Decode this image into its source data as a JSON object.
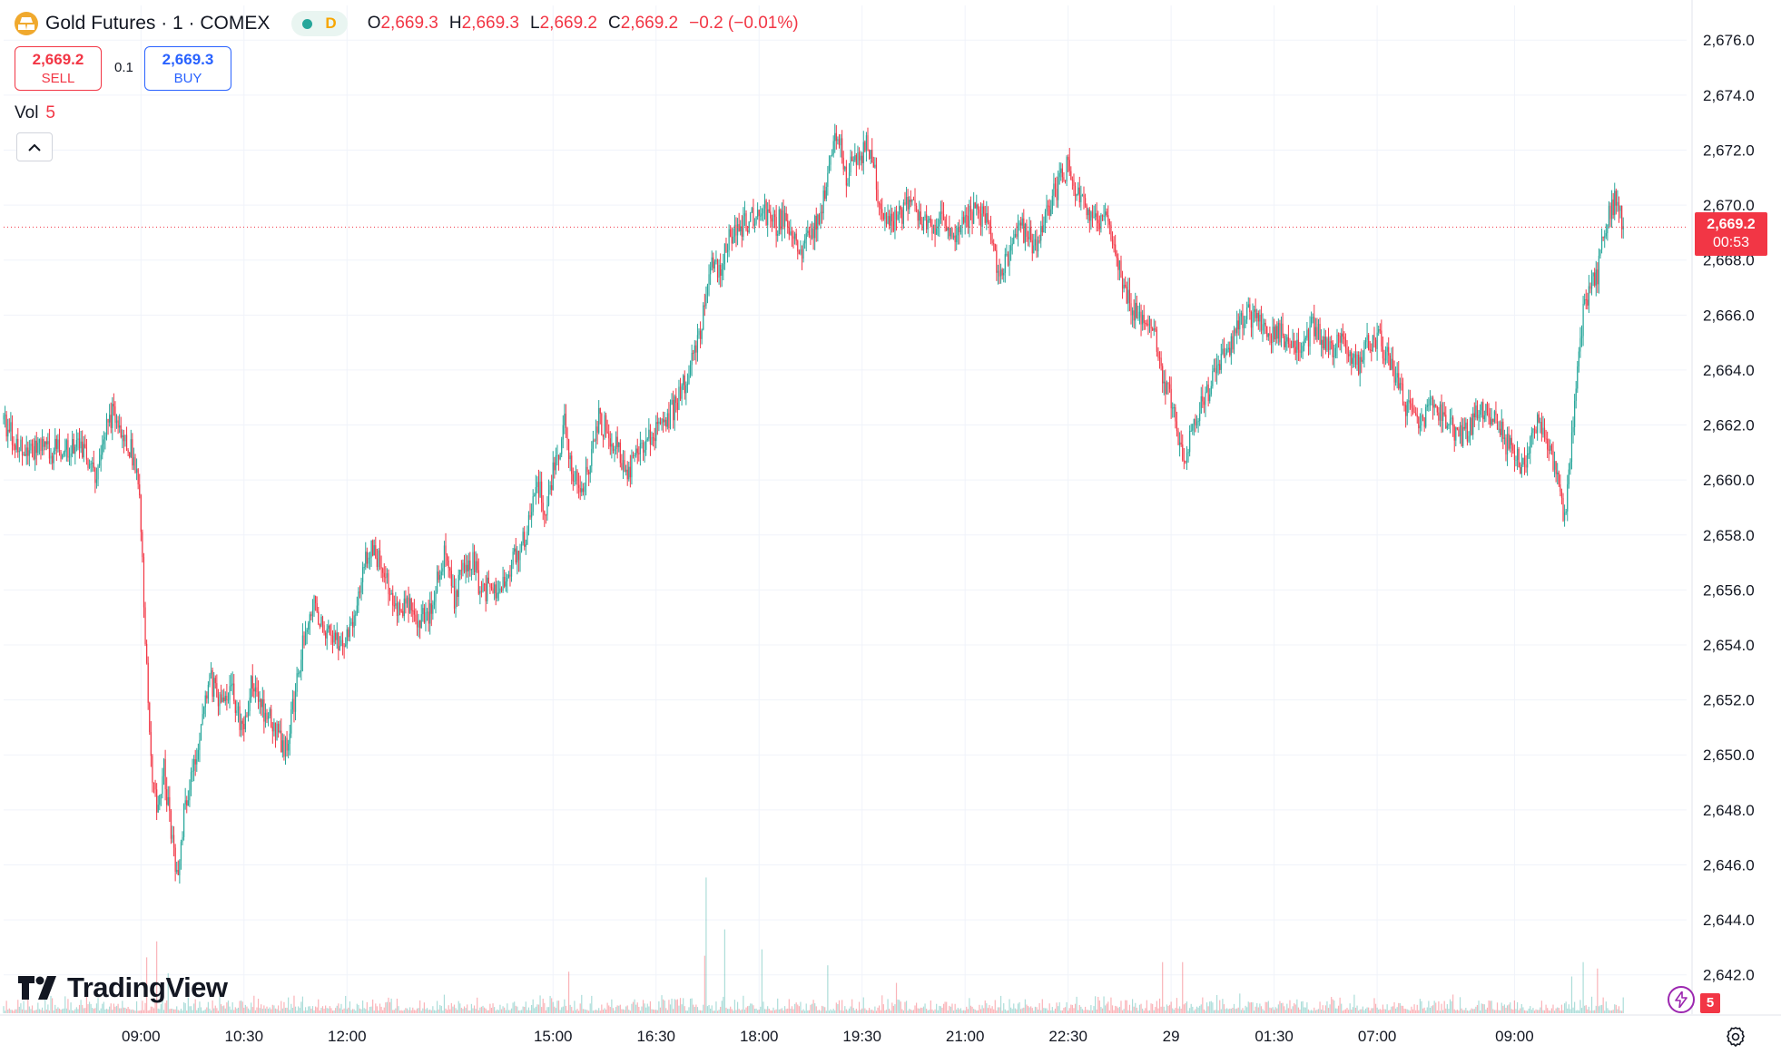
{
  "header": {
    "symbol": "Gold Futures · 1 · COMEX",
    "session": "D",
    "ohlc": {
      "o_label": "O",
      "o": "2,669.3",
      "h_label": "H",
      "h": "2,669.3",
      "l_label": "L",
      "l": "2,669.2",
      "c_label": "C",
      "c": "2,669.2",
      "change": "−0.2 (−0.01%)"
    }
  },
  "trade": {
    "sell_price": "2,669.2",
    "sell_label": "SELL",
    "spread": "0.1",
    "buy_price": "2,669.3",
    "buy_label": "BUY"
  },
  "volume_legend": {
    "label": "Vol",
    "value": "5"
  },
  "last_price": {
    "price": "2,669.2",
    "countdown": "00:53"
  },
  "branding": {
    "logo_text": "TradingView"
  },
  "alerts_badge": "5",
  "colors": {
    "up": "#26a69a",
    "down": "#f23645",
    "accent": "#2962ff",
    "grid": "#f0f3fa"
  },
  "chart_data": {
    "type": "candlestick",
    "title": "Gold Futures · 1 · COMEX",
    "y_axis": {
      "min": 2641.0,
      "max": 2676.8,
      "ticks": [
        2676,
        2674,
        2672,
        2670,
        2668,
        2666,
        2664,
        2662,
        2660,
        2658,
        2656,
        2654,
        2652,
        2650,
        2648,
        2646,
        2644,
        2642
      ],
      "tick_labels": [
        "2,676.0",
        "2,674.0",
        "2,672.0",
        "2,670.0",
        "2,668.0",
        "2,666.0",
        "2,664.0",
        "2,662.0",
        "2,660.0",
        "2,658.0",
        "2,656.0",
        "2,654.0",
        "2,652.0",
        "2,650.0",
        "2,648.0",
        "2,646.0",
        "2,644.0",
        "2,642.0"
      ]
    },
    "x_axis": {
      "domain": [
        0,
        1464
      ],
      "ticks": [
        {
          "t": 120,
          "label": "09:00"
        },
        {
          "t": 210,
          "label": "10:30"
        },
        {
          "t": 300,
          "label": "12:00"
        },
        {
          "t": 480,
          "label": "15:00"
        },
        {
          "t": 570,
          "label": "16:30"
        },
        {
          "t": 660,
          "label": "18:00"
        },
        {
          "t": 750,
          "label": "19:30"
        },
        {
          "t": 840,
          "label": "21:00"
        },
        {
          "t": 930,
          "label": "22:30"
        },
        {
          "t": 1020,
          "label": "29"
        },
        {
          "t": 1110,
          "label": "01:30"
        },
        {
          "t": 1200,
          "label": "07:00"
        },
        {
          "t": 1320,
          "label": "09:00"
        }
      ]
    },
    "grid": true,
    "last_price": 2669.2,
    "price_path": [
      [
        0,
        2662.2
      ],
      [
        10,
        2661.5
      ],
      [
        20,
        2660.8
      ],
      [
        30,
        2661.2
      ],
      [
        40,
        2661.0
      ],
      [
        55,
        2661.2
      ],
      [
        70,
        2661.0
      ],
      [
        82,
        2660.2
      ],
      [
        90,
        2662.0
      ],
      [
        97,
        2662.5
      ],
      [
        105,
        2661.6
      ],
      [
        112,
        2661.0
      ],
      [
        118,
        2660.0
      ],
      [
        122,
        2656.0
      ],
      [
        128,
        2650.0
      ],
      [
        134,
        2648.2
      ],
      [
        140,
        2649.5
      ],
      [
        146,
        2647.2
      ],
      [
        152,
        2645.5
      ],
      [
        158,
        2648.0
      ],
      [
        164,
        2649.0
      ],
      [
        172,
        2651.0
      ],
      [
        180,
        2652.8
      ],
      [
        190,
        2651.8
      ],
      [
        200,
        2652.2
      ],
      [
        210,
        2650.8
      ],
      [
        216,
        2652.5
      ],
      [
        222,
        2652.0
      ],
      [
        230,
        2651.5
      ],
      [
        240,
        2650.6
      ],
      [
        246,
        2650.3
      ],
      [
        252,
        2651.5
      ],
      [
        258,
        2653.0
      ],
      [
        265,
        2655.0
      ],
      [
        272,
        2655.5
      ],
      [
        280,
        2654.5
      ],
      [
        290,
        2654.0
      ],
      [
        298,
        2654.3
      ],
      [
        306,
        2654.8
      ],
      [
        314,
        2657.0
      ],
      [
        322,
        2657.6
      ],
      [
        330,
        2656.8
      ],
      [
        338,
        2656.0
      ],
      [
        346,
        2655.2
      ],
      [
        354,
        2655.5
      ],
      [
        362,
        2654.8
      ],
      [
        370,
        2655.0
      ],
      [
        378,
        2656.2
      ],
      [
        386,
        2657.5
      ],
      [
        394,
        2655.6
      ],
      [
        402,
        2656.8
      ],
      [
        410,
        2657.0
      ],
      [
        418,
        2655.8
      ],
      [
        426,
        2656.2
      ],
      [
        434,
        2656.0
      ],
      [
        442,
        2656.8
      ],
      [
        450,
        2657.3
      ],
      [
        458,
        2658.2
      ],
      [
        466,
        2659.8
      ],
      [
        474,
        2659.0
      ],
      [
        482,
        2660.6
      ],
      [
        490,
        2662.0
      ],
      [
        496,
        2660.6
      ],
      [
        504,
        2659.2
      ],
      [
        512,
        2660.6
      ],
      [
        520,
        2662.2
      ],
      [
        528,
        2661.8
      ],
      [
        536,
        2661.2
      ],
      [
        544,
        2660.0
      ],
      [
        552,
        2660.8
      ],
      [
        560,
        2661.4
      ],
      [
        568,
        2661.8
      ],
      [
        578,
        2662.0
      ],
      [
        590,
        2663.0
      ],
      [
        600,
        2664.2
      ],
      [
        610,
        2665.5
      ],
      [
        614,
        2667.0
      ],
      [
        618,
        2668.2
      ],
      [
        624,
        2667.5
      ],
      [
        632,
        2668.6
      ],
      [
        640,
        2669.0
      ],
      [
        648,
        2669.4
      ],
      [
        656,
        2669.6
      ],
      [
        664,
        2669.8
      ],
      [
        672,
        2669.2
      ],
      [
        680,
        2669.5
      ],
      [
        688,
        2669.0
      ],
      [
        696,
        2668.4
      ],
      [
        704,
        2668.8
      ],
      [
        712,
        2669.6
      ],
      [
        718,
        2670.4
      ],
      [
        724,
        2672.0
      ],
      [
        730,
        2672.6
      ],
      [
        736,
        2671.0
      ],
      [
        742,
        2671.5
      ],
      [
        748,
        2671.8
      ],
      [
        754,
        2672.2
      ],
      [
        760,
        2671.4
      ],
      [
        766,
        2669.8
      ],
      [
        772,
        2669.2
      ],
      [
        780,
        2669.4
      ],
      [
        790,
        2670.0
      ],
      [
        800,
        2669.6
      ],
      [
        810,
        2669.2
      ],
      [
        820,
        2669.4
      ],
      [
        830,
        2669.0
      ],
      [
        840,
        2669.4
      ],
      [
        850,
        2669.8
      ],
      [
        860,
        2669.4
      ],
      [
        866,
        2668.0
      ],
      [
        872,
        2667.4
      ],
      [
        878,
        2668.2
      ],
      [
        886,
        2669.2
      ],
      [
        894,
        2669.0
      ],
      [
        900,
        2668.4
      ],
      [
        906,
        2669.2
      ],
      [
        914,
        2670.0
      ],
      [
        922,
        2670.8
      ],
      [
        930,
        2671.4
      ],
      [
        938,
        2670.6
      ],
      [
        946,
        2669.8
      ],
      [
        954,
        2669.4
      ],
      [
        962,
        2669.6
      ],
      [
        970,
        2668.2
      ],
      [
        978,
        2667.2
      ],
      [
        986,
        2666.2
      ],
      [
        994,
        2665.8
      ],
      [
        1002,
        2666.0
      ],
      [
        1008,
        2664.8
      ],
      [
        1014,
        2663.6
      ],
      [
        1020,
        2662.8
      ],
      [
        1026,
        2661.4
      ],
      [
        1032,
        2661.0
      ],
      [
        1040,
        2662.2
      ],
      [
        1048,
        2662.8
      ],
      [
        1056,
        2663.6
      ],
      [
        1064,
        2664.4
      ],
      [
        1072,
        2665.0
      ],
      [
        1080,
        2665.8
      ],
      [
        1088,
        2666.0
      ],
      [
        1096,
        2665.8
      ],
      [
        1104,
        2665.2
      ],
      [
        1112,
        2665.6
      ],
      [
        1120,
        2665.0
      ],
      [
        1128,
        2664.6
      ],
      [
        1136,
        2665.0
      ],
      [
        1144,
        2665.6
      ],
      [
        1152,
        2665.2
      ],
      [
        1160,
        2664.8
      ],
      [
        1168,
        2665.0
      ],
      [
        1176,
        2664.6
      ],
      [
        1184,
        2664.2
      ],
      [
        1192,
        2665.0
      ],
      [
        1200,
        2665.2
      ],
      [
        1208,
        2664.6
      ],
      [
        1216,
        2663.6
      ],
      [
        1224,
        2662.8
      ],
      [
        1232,
        2662.2
      ],
      [
        1240,
        2662.0
      ],
      [
        1248,
        2662.8
      ],
      [
        1256,
        2662.4
      ],
      [
        1264,
        2662.0
      ],
      [
        1272,
        2661.6
      ],
      [
        1280,
        2661.8
      ],
      [
        1288,
        2662.4
      ],
      [
        1296,
        2662.6
      ],
      [
        1304,
        2662.2
      ],
      [
        1312,
        2661.4
      ],
      [
        1320,
        2661.0
      ],
      [
        1328,
        2660.4
      ],
      [
        1334,
        2661.2
      ],
      [
        1340,
        2662.2
      ],
      [
        1346,
        2661.8
      ],
      [
        1352,
        2661.0
      ],
      [
        1356,
        2660.2
      ],
      [
        1360,
        2659.2
      ],
      [
        1364,
        2658.6
      ],
      [
        1368,
        2660.6
      ],
      [
        1372,
        2662.4
      ],
      [
        1376,
        2664.2
      ],
      [
        1380,
        2666.0
      ],
      [
        1384,
        2666.8
      ],
      [
        1388,
        2667.8
      ],
      [
        1392,
        2667.2
      ],
      [
        1396,
        2668.4
      ],
      [
        1400,
        2669.4
      ],
      [
        1404,
        2669.6
      ],
      [
        1408,
        2670.4
      ],
      [
        1412,
        2669.6
      ],
      [
        1416,
        2669.2
      ]
    ],
    "volume": {
      "typical_max": 5,
      "spikes": [
        {
          "t": 125,
          "value": 70
        },
        {
          "t": 134,
          "value": 90
        },
        {
          "t": 144,
          "value": 50
        },
        {
          "t": 614,
          "value": 170
        },
        {
          "t": 612,
          "value": 72
        },
        {
          "t": 630,
          "value": 105
        },
        {
          "t": 662,
          "value": 80
        },
        {
          "t": 720,
          "value": 60
        },
        {
          "t": 780,
          "value": 38
        },
        {
          "t": 1013,
          "value": 64
        },
        {
          "t": 1030,
          "value": 64
        },
        {
          "t": 1380,
          "value": 64
        },
        {
          "t": 1392,
          "value": 56
        },
        {
          "t": 1370,
          "value": 46
        },
        {
          "t": 494,
          "value": 52
        }
      ]
    }
  }
}
